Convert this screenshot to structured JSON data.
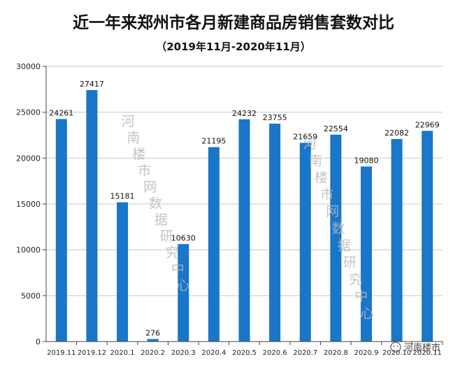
{
  "chart_data": {
    "type": "bar",
    "title": "近一年来郑州市各月新建商品房销售套数对比",
    "subtitle": "（2019年11月-2020年11月）",
    "categories": [
      "2019.11",
      "2019.12",
      "2020.1",
      "2020.2",
      "2020.3",
      "2020.4",
      "2020.5",
      "2020.6",
      "2020.7",
      "2020.8",
      "2020.9",
      "2020.10",
      "2020.11"
    ],
    "series": [
      {
        "values": [
          24261,
          27417,
          15181,
          276,
          10630,
          21195,
          24232,
          23755,
          21659,
          22554,
          19080,
          22082,
          22969
        ]
      }
    ],
    "ylim": [
      0,
      30000
    ],
    "yticks": [
      0,
      5000,
      10000,
      15000,
      20000,
      25000,
      30000
    ],
    "grid": true,
    "data_labels": true,
    "bar_color": "#1976c8",
    "grid_color": "#c8c8c8"
  },
  "watermarks": [
    "河南楼市网数据研究中心",
    "河南楼市网数据研究中心"
  ],
  "logo_text": "河南楼市"
}
